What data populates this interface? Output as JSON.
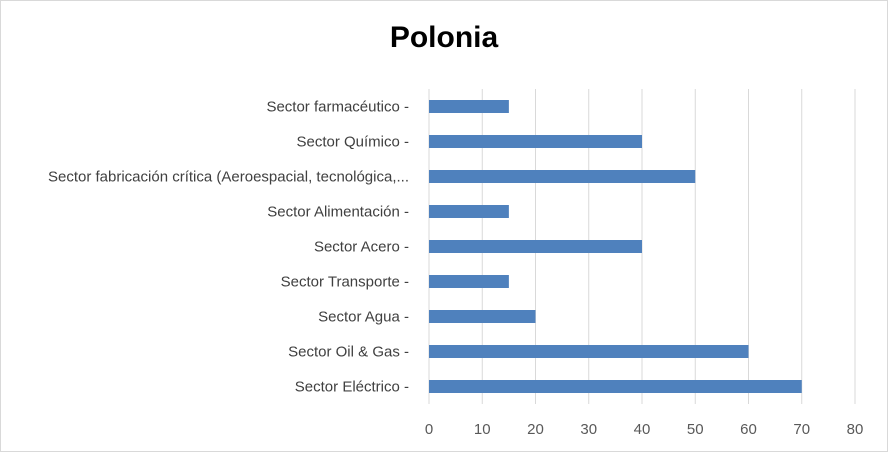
{
  "chart_data": {
    "type": "bar",
    "orientation": "horizontal",
    "title": "Polonia",
    "categories": [
      "Sector farmacéutico -",
      "Sector Químico -",
      "Sector fabricación crítica (Aeroespacial, tecnológica,...",
      "Sector Alimentación -",
      "Sector Acero -",
      "Sector Transporte -",
      "Sector Agua -",
      "Sector Oil & Gas -",
      "Sector Eléctrico -"
    ],
    "values": [
      15,
      40,
      50,
      15,
      40,
      15,
      20,
      60,
      70
    ],
    "xlim": [
      0,
      80
    ],
    "x_ticks": [
      "0",
      "10",
      "20",
      "30",
      "40",
      "50",
      "60",
      "70",
      "80"
    ],
    "grid": true,
    "legend": "none",
    "bar_color": "#4f81bd",
    "grid_color": "#d9d9d9"
  }
}
